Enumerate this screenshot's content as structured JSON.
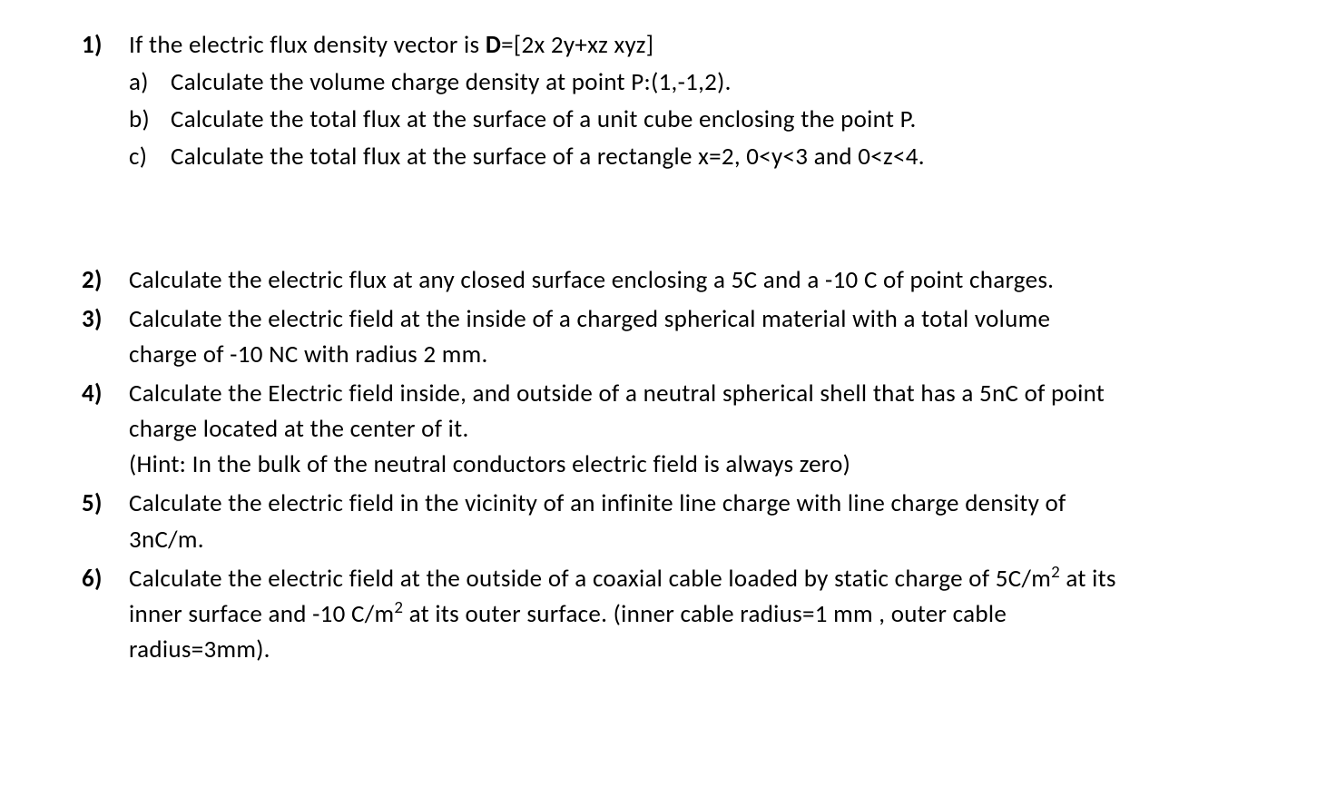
{
  "q1": {
    "num": "1)",
    "lead_before_D": "If the electric flux density vector is ",
    "D_label": "D",
    "D_after": "=[2x   2y+xz   xyz]",
    "a": {
      "label": "a)",
      "text": "Calculate the volume charge density at point P:(1,-1,2)."
    },
    "b": {
      "label": "b)",
      "text": "Calculate the total flux at the surface of a unit cube enclosing the point P."
    },
    "c": {
      "label": "c)",
      "text": "Calculate the total flux at the surface of a rectangle x=2, 0<y<3  and 0<z<4."
    }
  },
  "q2": {
    "num": "2)",
    "text": "Calculate the electric flux at any closed surface enclosing a 5C and a  -10 C of point charges."
  },
  "q3": {
    "num": "3)",
    "line1": "Calculate the electric field at the inside of a charged spherical material with a total volume",
    "line2": "charge of -10 NC with radius 2 mm."
  },
  "q4": {
    "num": "4)",
    "line1": "Calculate the Electric field inside, and outside of a neutral spherical shell that has a 5nC of point",
    "line2": "charge located at the center of it.",
    "line3": "(Hint: In the bulk of the neutral conductors electric field is always zero)"
  },
  "q5": {
    "num": "5)",
    "line1": "Calculate the electric field in the vicinity of an infinite line charge with line charge density of",
    "line2": "3nC/m."
  },
  "q6": {
    "num": "6)",
    "part1_before_sup": "Calculate the electric field at the outside of a coaxial cable loaded by static charge of 5C/m",
    "sup1": "2",
    "part1_after_sup": " at its",
    "part2_before_sup": "inner surface and -10 C/m",
    "sup2": "2",
    "part2_after_sup": " at its outer surface. (inner cable radius=1 mm , outer cable",
    "part3": "radius=3mm)."
  }
}
